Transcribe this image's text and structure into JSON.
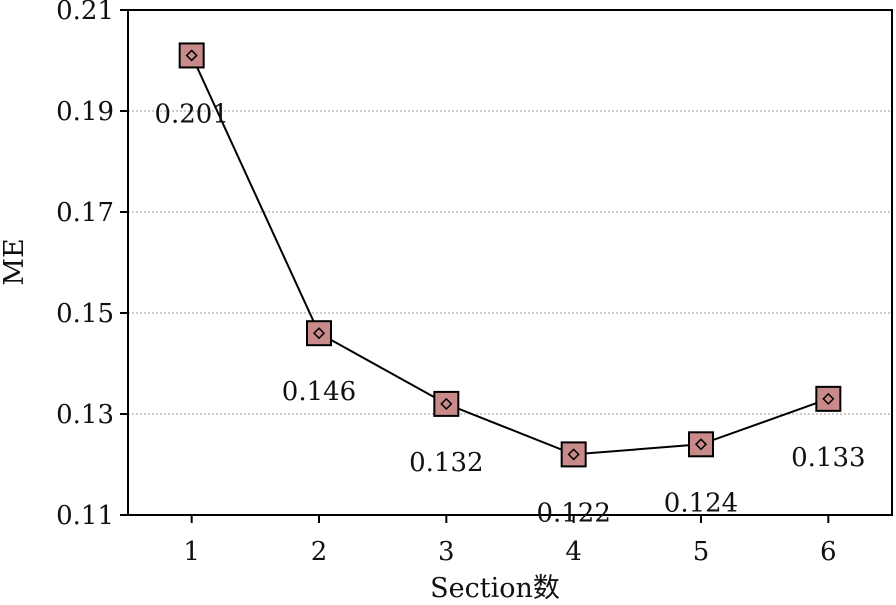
{
  "chart_data": {
    "type": "line",
    "title": "",
    "xlabel": "Section数",
    "ylabel": "ME",
    "x": [
      1,
      2,
      3,
      4,
      5,
      6
    ],
    "xlim": [
      0.5,
      6.5
    ],
    "ylim": [
      0.11,
      0.21
    ],
    "yticks": [
      "0.11",
      "0.13",
      "0.15",
      "0.17",
      "0.19",
      "0.21"
    ],
    "xticks": [
      "1",
      "2",
      "3",
      "4",
      "5",
      "6"
    ],
    "grid": "horizontal dotted",
    "series": [
      {
        "values": [
          0.201,
          0.146,
          0.132,
          0.122,
          0.124,
          0.133
        ],
        "labels": [
          "0.201",
          "0.146",
          "0.132",
          "0.122",
          "0.124",
          "0.133"
        ]
      }
    ],
    "colors": {
      "marker_fill": "#c98a8a",
      "marker_stroke": "#000000",
      "line": "#000000",
      "grid": "#9a9a9a"
    },
    "marker": "square with diamond"
  }
}
